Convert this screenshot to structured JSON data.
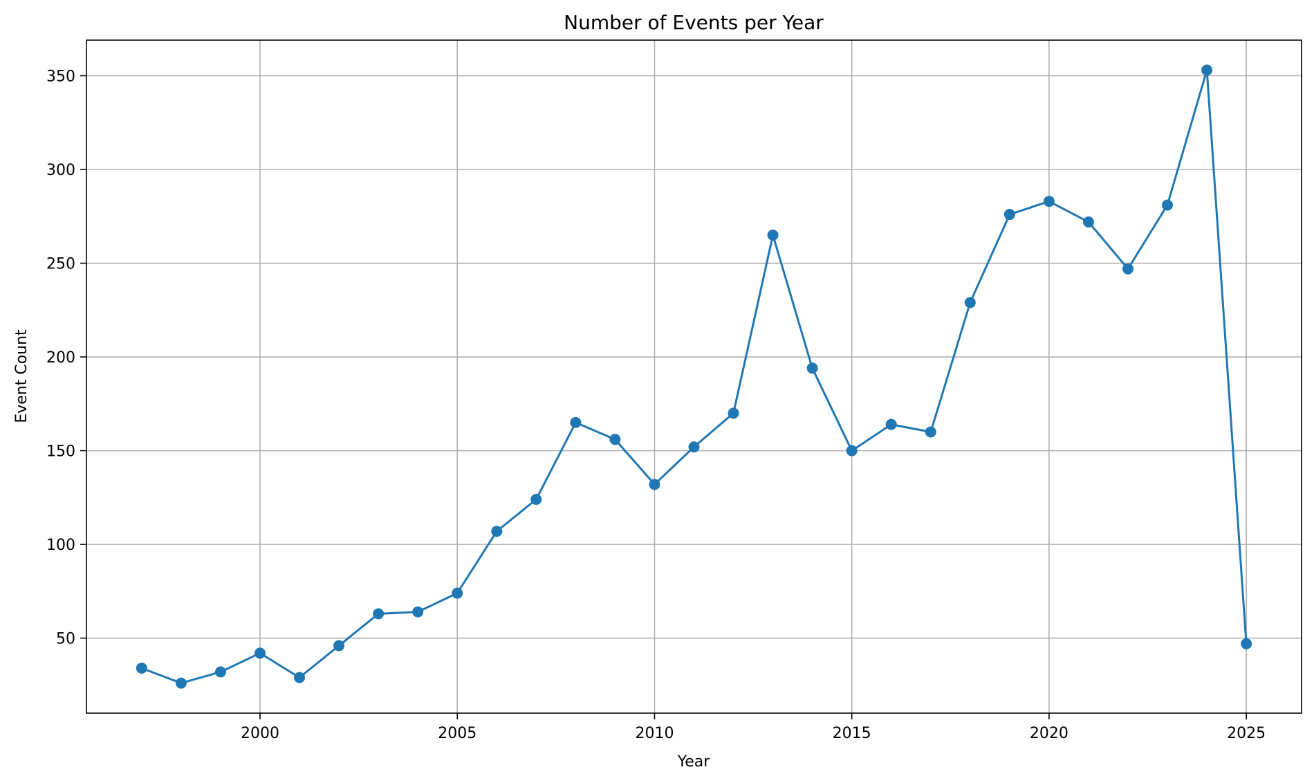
{
  "chart_data": {
    "type": "line",
    "title": "Number of Events per Year",
    "xlabel": "Year",
    "ylabel": "Event Count",
    "xlim": [
      1995.6,
      2026.4
    ],
    "ylim": [
      10,
      369
    ],
    "xticks": [
      2000,
      2005,
      2010,
      2015,
      2020,
      2025
    ],
    "yticks": [
      50,
      100,
      150,
      200,
      250,
      300,
      350
    ],
    "grid": true,
    "line_color": "#1f77b4",
    "grid_color": "#b0b0b0",
    "series": [
      {
        "x": [
          1997,
          1998,
          1999,
          2000,
          2001,
          2002,
          2003,
          2004,
          2005,
          2006,
          2007,
          2008,
          2009,
          2010,
          2011,
          2012,
          2013,
          2014,
          2015,
          2016,
          2017,
          2018,
          2019,
          2020,
          2021,
          2022,
          2023,
          2024,
          2025
        ],
        "values": [
          34,
          26,
          32,
          42,
          29,
          46,
          63,
          64,
          74,
          107,
          124,
          165,
          156,
          132,
          152,
          170,
          265,
          194,
          150,
          164,
          160,
          229,
          276,
          283,
          272,
          247,
          281,
          353,
          47
        ]
      }
    ]
  }
}
